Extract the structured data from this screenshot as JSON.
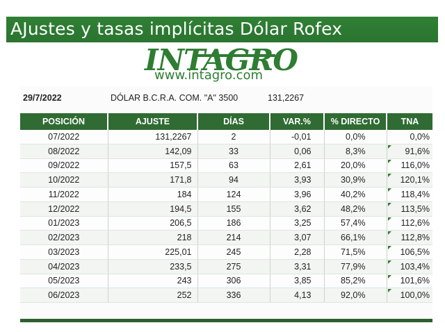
{
  "title": "AJustes y tasas implícitas Dólar Rofex",
  "logo": {
    "word": "INTAGRO",
    "url": "www.intagro.com"
  },
  "info": {
    "date": "29/7/2022",
    "label": "DÓLAR B.C.R.A. COM. \"A\" 3500",
    "value": "131,2267"
  },
  "table": {
    "headers": [
      "POSICIÓN",
      "AJUSTE",
      "DÍAS",
      "VAR.%",
      "% DIRECTO",
      "TNA"
    ],
    "rows": [
      [
        "07/2022",
        "131,2267",
        "2",
        "-0,01",
        "0,0%",
        "0,0%"
      ],
      [
        "08/2022",
        "142,09",
        "33",
        "0,06",
        "8,3%",
        "91,6%"
      ],
      [
        "09/2022",
        "157,5",
        "63",
        "2,61",
        "20,0%",
        "116,0%"
      ],
      [
        "10/2022",
        "171,8",
        "94",
        "3,93",
        "30,9%",
        "120,1%"
      ],
      [
        "11/2022",
        "184",
        "124",
        "3,96",
        "40,2%",
        "118,4%"
      ],
      [
        "12/2022",
        "194,5",
        "155",
        "3,62",
        "48,2%",
        "113,5%"
      ],
      [
        "01/2023",
        "206,5",
        "186",
        "3,25",
        "57,4%",
        "112,6%"
      ],
      [
        "02/2023",
        "218",
        "214",
        "3,07",
        "66,1%",
        "112,8%"
      ],
      [
        "03/2023",
        "225,01",
        "245",
        "2,28",
        "71,5%",
        "106,5%"
      ],
      [
        "04/2023",
        "233,5",
        "275",
        "3,31",
        "77,9%",
        "103,4%"
      ],
      [
        "05/2023",
        "243",
        "306",
        "3,85",
        "85,2%",
        "101,6%"
      ],
      [
        "06/2023",
        "252",
        "336",
        "4,13",
        "92,0%",
        "100,0%"
      ]
    ]
  },
  "colors": {
    "brand_green": "#2e7d32",
    "header_green": "#2f6b33"
  }
}
